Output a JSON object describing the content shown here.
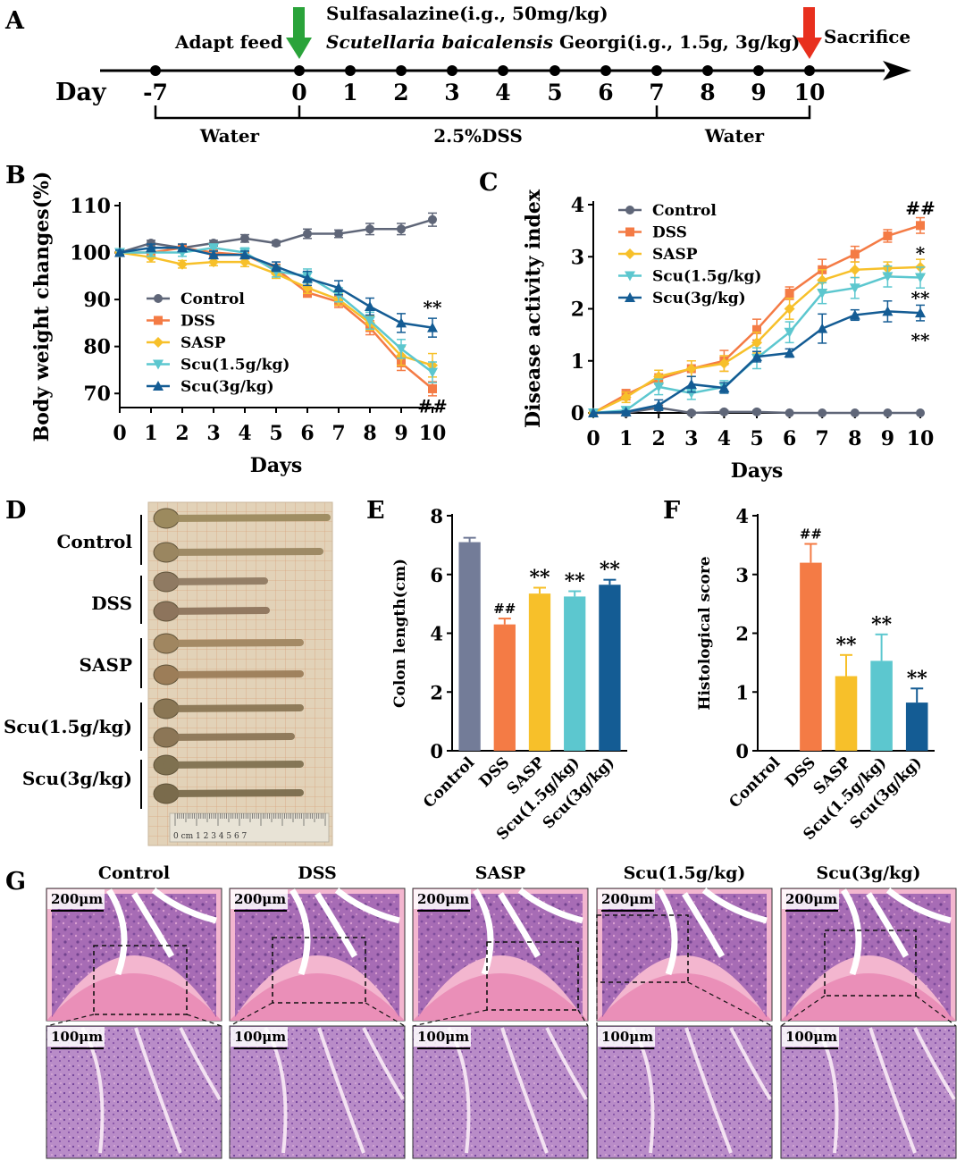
{
  "panels": {
    "A": "A",
    "B": "B",
    "C": "C",
    "D": "D",
    "E": "E",
    "F": "F",
    "G": "G"
  },
  "timeline": {
    "day_label": "Day",
    "days": [
      "-7",
      "0",
      "1",
      "2",
      "3",
      "4",
      "5",
      "6",
      "7",
      "8",
      "9",
      "10"
    ],
    "adapt_label": "Adapt feed",
    "drug_line1": "Sulfasalazine(i.g., 50mg/kg)",
    "drug_line2_italic": "Scutellaria baicalensis",
    "drug_line2_rest": " Georgi(i.g., 1.5g, 3g/kg)",
    "sacrifice_label": "Sacrifice",
    "water1": "Water",
    "dss": "2.5%DSS",
    "water2": "Water",
    "start_arrow_color": "#2aa33a",
    "end_arrow_color": "#e8301e"
  },
  "series_styles": [
    {
      "name": "Control",
      "color": "#5f6678",
      "marker": "circle"
    },
    {
      "name": "DSS",
      "color": "#f47b45",
      "marker": "square"
    },
    {
      "name": "SASP",
      "color": "#f7c02a",
      "marker": "diamond"
    },
    {
      "name": "Scu(1.5g/kg)",
      "color": "#5cc7cf",
      "marker": "triangle-down"
    },
    {
      "name": "Scu(3g/kg)",
      "color": "#145c94",
      "marker": "triangle-up"
    }
  ],
  "chart_data": [
    {
      "id": "B",
      "type": "line",
      "xlabel": "Days",
      "ylabel": "Body weight changes(%)",
      "x": [
        0,
        1,
        2,
        3,
        4,
        5,
        6,
        7,
        8,
        9,
        10
      ],
      "xlim": [
        0,
        10
      ],
      "ylim": [
        67,
        110
      ],
      "yticks": [
        70,
        80,
        90,
        100,
        110
      ],
      "series": [
        {
          "name": "Control",
          "values": [
            100,
            102,
            101,
            102,
            103,
            102,
            104,
            104,
            105,
            105,
            107
          ],
          "err": [
            0.5,
            0.6,
            0.7,
            0.6,
            0.8,
            0.5,
            1.0,
            0.8,
            1.2,
            1.2,
            1.4
          ]
        },
        {
          "name": "DSS",
          "values": [
            100,
            100,
            101,
            100,
            99.5,
            96.5,
            91.5,
            89.5,
            84,
            76.5,
            71
          ],
          "err": [
            0.5,
            0.6,
            0.7,
            0.7,
            0.8,
            1.0,
            1.0,
            1.2,
            1.5,
            1.6,
            1.5
          ]
        },
        {
          "name": "SASP",
          "values": [
            100,
            99,
            97.5,
            98,
            98,
            95.5,
            92.5,
            90,
            85,
            78,
            76
          ],
          "err": [
            0.5,
            1.0,
            0.8,
            0.8,
            1.0,
            1.0,
            1.2,
            1.2,
            1.5,
            2.0,
            2.5
          ]
        },
        {
          "name": "Scu(1.5g/kg)",
          "values": [
            100,
            100,
            100,
            101,
            100,
            96,
            95,
            91,
            85.5,
            79.5,
            74.5
          ],
          "err": [
            0.5,
            0.8,
            0.8,
            0.8,
            1.0,
            1.2,
            1.5,
            1.5,
            1.8,
            2.0,
            2.2
          ]
        },
        {
          "name": "Scu(3g/kg)",
          "values": [
            100,
            101,
            101,
            99.5,
            99.5,
            97,
            94.5,
            92.5,
            88.5,
            85,
            84
          ],
          "err": [
            0.5,
            0.8,
            0.8,
            0.8,
            0.8,
            1.0,
            1.5,
            1.5,
            1.8,
            2.0,
            2.0
          ]
        }
      ],
      "legend": "bottom-left",
      "annotations": [
        {
          "text": "**",
          "x": 10,
          "y": 88.5
        },
        {
          "text": "##",
          "x": 10,
          "y": 67.5
        }
      ]
    },
    {
      "id": "C",
      "type": "line",
      "xlabel": "Days",
      "ylabel": "Disease activity index",
      "x": [
        0,
        1,
        2,
        3,
        4,
        5,
        6,
        7,
        8,
        9,
        10
      ],
      "xlim": [
        0,
        10
      ],
      "ylim": [
        0,
        4
      ],
      "yticks": [
        0,
        1,
        2,
        3,
        4
      ],
      "series": [
        {
          "name": "Control",
          "values": [
            0,
            0,
            0.1,
            0,
            0.02,
            0.02,
            0,
            0,
            0,
            0,
            0
          ],
          "err": [
            0,
            0,
            0.05,
            0.03,
            0.03,
            0.03,
            0,
            0,
            0,
            0,
            0
          ]
        },
        {
          "name": "DSS",
          "values": [
            0,
            0.35,
            0.65,
            0.85,
            1.0,
            1.6,
            2.3,
            2.75,
            3.05,
            3.4,
            3.6
          ],
          "err": [
            0,
            0.1,
            0.1,
            0.15,
            0.2,
            0.2,
            0.12,
            0.2,
            0.15,
            0.12,
            0.15
          ]
        },
        {
          "name": "SASP",
          "values": [
            0,
            0.3,
            0.7,
            0.85,
            0.95,
            1.35,
            2.0,
            2.55,
            2.75,
            2.78,
            2.8
          ],
          "err": [
            0,
            0.1,
            0.12,
            0.15,
            0.15,
            0.2,
            0.2,
            0.2,
            0.15,
            0.12,
            0.15
          ]
        },
        {
          "name": "Scu(1.5g/kg)",
          "values": [
            0,
            0.05,
            0.5,
            0.38,
            0.5,
            1.05,
            1.55,
            2.3,
            2.4,
            2.62,
            2.6
          ],
          "err": [
            0,
            0.05,
            0.15,
            0.12,
            0.12,
            0.2,
            0.2,
            0.2,
            0.2,
            0.2,
            0.2
          ]
        },
        {
          "name": "Scu(3g/kg)",
          "values": [
            0,
            0.02,
            0.15,
            0.55,
            0.48,
            1.08,
            1.15,
            1.62,
            1.88,
            1.95,
            1.92
          ],
          "err": [
            0,
            0.02,
            0.1,
            0.15,
            0.1,
            0.1,
            0.08,
            0.28,
            0.1,
            0.2,
            0.15
          ]
        }
      ],
      "legend": "top-left",
      "annotations": [
        {
          "text": "##",
          "x": 10,
          "y": 3.95
        },
        {
          "text": "*",
          "x": 10,
          "y": 3.08
        },
        {
          "text": "**",
          "x": 10,
          "y": 2.22
        },
        {
          "text": "**",
          "x": 10,
          "y": 1.42
        }
      ]
    },
    {
      "id": "E",
      "type": "bar",
      "ylabel": "Colon length(cm)",
      "categories": [
        "Control",
        "DSS",
        "SASP",
        "Scu(1.5g/kg)",
        "Scu(3g/kg)"
      ],
      "values": [
        7.1,
        4.3,
        5.35,
        5.25,
        5.65
      ],
      "err": [
        0.15,
        0.2,
        0.2,
        0.18,
        0.17
      ],
      "ylim": [
        0,
        8
      ],
      "yticks": [
        0,
        2,
        4,
        6,
        8
      ],
      "colors": [
        "#737c98",
        "#f47b45",
        "#f7c02a",
        "#5cc7cf",
        "#145c94"
      ],
      "annotations": [
        "",
        "##",
        "**",
        "**",
        "**"
      ]
    },
    {
      "id": "F",
      "type": "bar",
      "ylabel": "Histological score",
      "categories": [
        "Control",
        "DSS",
        "SASP",
        "Scu(1.5g/kg)",
        "Scu(3g/kg)"
      ],
      "values": [
        0,
        3.2,
        1.27,
        1.53,
        0.82
      ],
      "err": [
        0,
        0.32,
        0.36,
        0.45,
        0.24
      ],
      "ylim": [
        0,
        4
      ],
      "yticks": [
        0,
        1,
        2,
        3,
        4
      ],
      "colors": [
        "#737c98",
        "#f47b45",
        "#f7c02a",
        "#5cc7cf",
        "#145c94"
      ],
      "annotations": [
        "",
        "##",
        "**",
        "**",
        "**"
      ]
    }
  ],
  "photo_d": {
    "labels": [
      "Control",
      "DSS",
      "SASP",
      "Scu(1.5g/kg)",
      "Scu(3g/kg)"
    ],
    "ruler_text": "0 cm 1   2   3   4   5   6   7"
  },
  "histology": {
    "groups": [
      "Control",
      "DSS",
      "SASP",
      "Scu(1.5g/kg)",
      "Scu(3g/kg)"
    ],
    "scale_top": "200μm",
    "scale_bottom": "100μm"
  }
}
